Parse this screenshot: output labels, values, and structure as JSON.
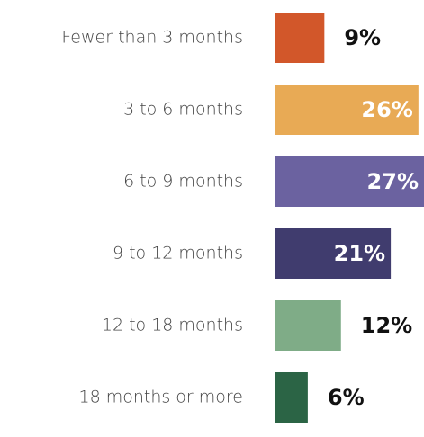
{
  "chart_data": {
    "type": "bar",
    "orientation": "horizontal",
    "categories": [
      "Fewer than 3 months",
      "3 to 6 months",
      "6 to 9 months",
      "9 to 12 months",
      "12 to 18 months",
      "18 months or more"
    ],
    "values": [
      9,
      26,
      27,
      21,
      12,
      6
    ],
    "value_labels": [
      "9%",
      "26%",
      "27%",
      "21%",
      "12%",
      "6%"
    ],
    "colors": [
      "#d2572a",
      "#e8aa55",
      "#6b62a0",
      "#403c6e",
      "#7fac87",
      "#2b6445"
    ]
  }
}
